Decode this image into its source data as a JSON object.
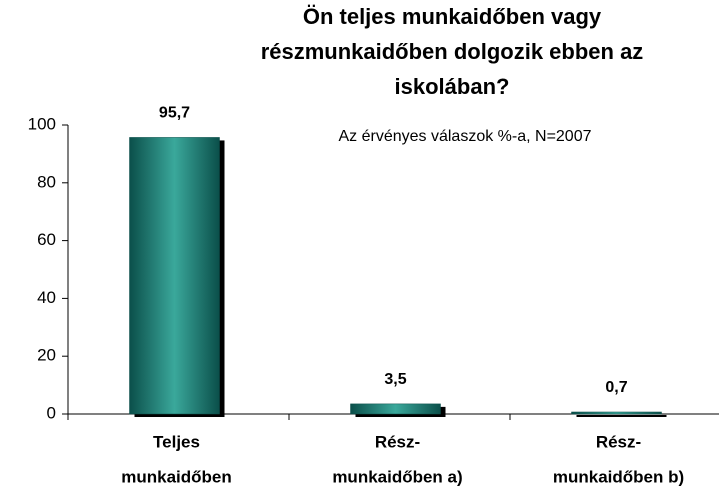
{
  "chart_data": {
    "type": "bar",
    "title": [
      "Ön teljes munkaidőben vagy",
      "részmunkaidőben dolgozik ebben az",
      "iskolában?"
    ],
    "subtitle": "Az érvényes válaszok %-a, N=2007",
    "categories": [
      [
        "Teljes",
        "munkaidőben"
      ],
      [
        "Rész-",
        "munkaidőben a)"
      ],
      [
        "Rész-",
        "munkaidőben b)"
      ]
    ],
    "values": [
      95.7,
      3.5,
      0.7
    ],
    "value_labels": [
      "95,7",
      "3,5",
      "0,7"
    ],
    "color": "#3aa89b",
    "ylim": [
      0,
      100
    ],
    "yticks": [
      0,
      20,
      40,
      60,
      80,
      100
    ],
    "grid": false
  }
}
